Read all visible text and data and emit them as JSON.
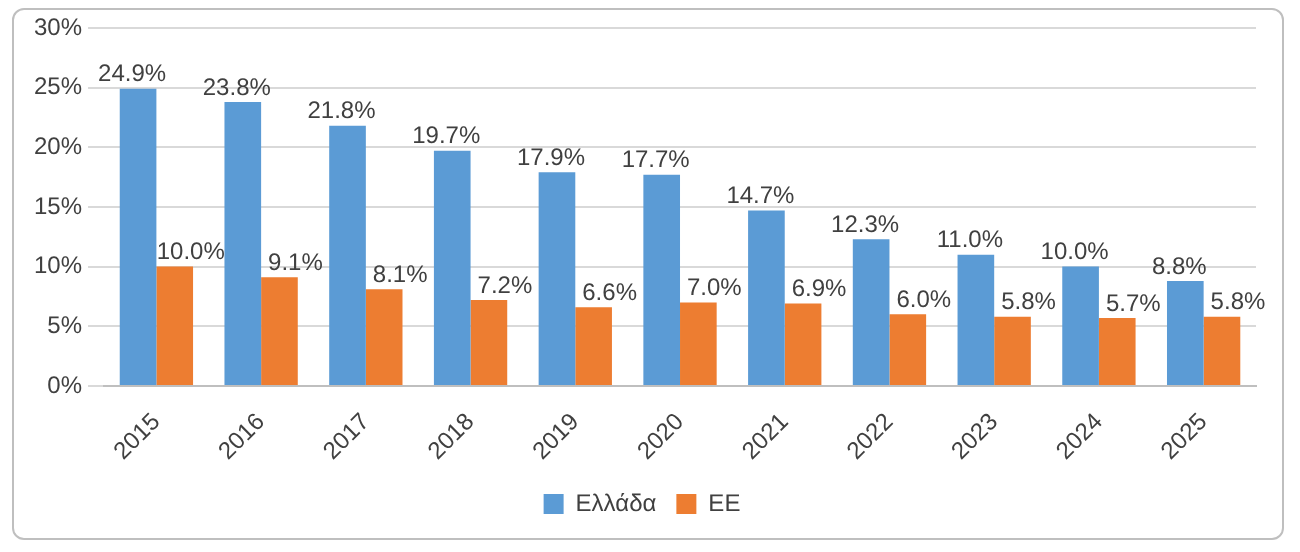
{
  "chart_data": {
    "type": "bar",
    "categories": [
      "2015",
      "2016",
      "2017",
      "2018",
      "2019",
      "2020",
      "2021",
      "2022",
      "2023",
      "2024",
      "2025"
    ],
    "series": [
      {
        "name": "Ελλάδα",
        "color": "#5b9bd5",
        "values": [
          24.9,
          23.8,
          21.8,
          19.7,
          17.9,
          17.7,
          14.7,
          12.3,
          11.0,
          10.0,
          8.8
        ],
        "value_labels": [
          "24.9%",
          "23.8%",
          "21.8%",
          "19.7%",
          "17.9%",
          "17.7%",
          "14.7%",
          "12.3%",
          "11.0%",
          "10.0%",
          "8.8%"
        ]
      },
      {
        "name": "ΕΕ",
        "color": "#ed7d31",
        "values": [
          10.0,
          9.1,
          8.1,
          7.2,
          6.6,
          7.0,
          6.9,
          6.0,
          5.8,
          5.7,
          5.8
        ],
        "value_labels": [
          "10.0%",
          "9.1%",
          "8.1%",
          "7.2%",
          "6.6%",
          "7.0%",
          "6.9%",
          "6.0%",
          "5.8%",
          "5.7%",
          "5.8%"
        ]
      }
    ],
    "ylim": [
      0,
      30
    ],
    "yticks": [
      {
        "value": 0,
        "label": "0%"
      },
      {
        "value": 5,
        "label": "5%"
      },
      {
        "value": 10,
        "label": "10%"
      },
      {
        "value": 15,
        "label": "15%"
      },
      {
        "value": 20,
        "label": "20%"
      },
      {
        "value": 25,
        "label": "25%"
      },
      {
        "value": 30,
        "label": "30%"
      }
    ],
    "grid": "y",
    "legend": "bottom"
  }
}
